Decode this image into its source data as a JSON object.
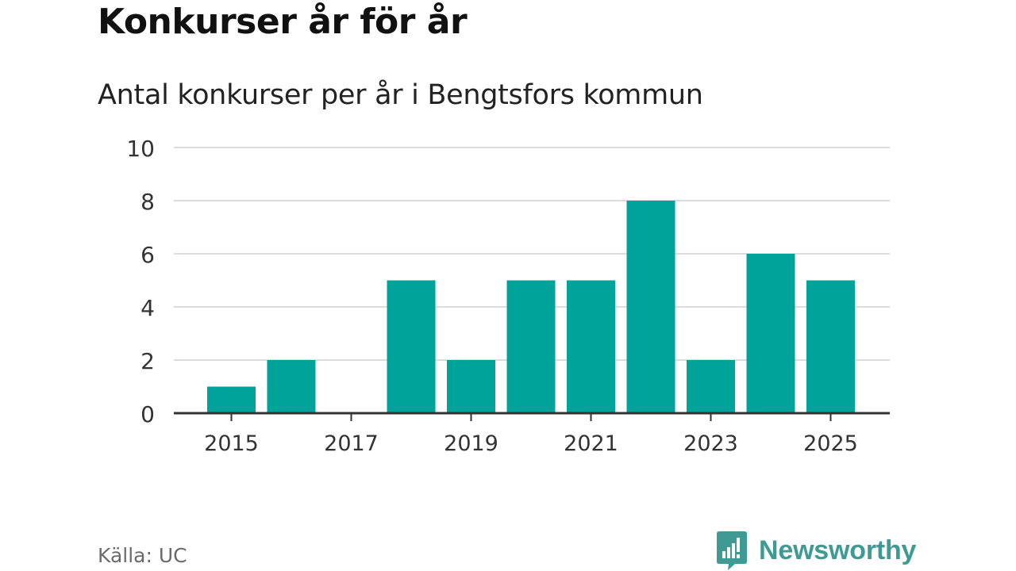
{
  "header": {
    "title": "Konkurser år för år",
    "subtitle": "Antal konkurser per år i Bengtsfors kommun"
  },
  "footer": {
    "source": "Källa: UC",
    "brand_name": "Newsworthy",
    "brand_icon": "newsworthy-logo-icon"
  },
  "colors": {
    "bar": "#00a39a",
    "grid": "#dcdcdc",
    "axis": "#333333",
    "brand": "#3f9a94"
  },
  "chart_data": {
    "type": "bar",
    "title": "Konkurser år för år",
    "subtitle": "Antal konkurser per år i Bengtsfors kommun",
    "xlabel": "",
    "ylabel": "",
    "categories": [
      2015,
      2016,
      2017,
      2018,
      2019,
      2020,
      2021,
      2022,
      2023,
      2024,
      2025
    ],
    "values": [
      1,
      2,
      0,
      5,
      2,
      5,
      5,
      8,
      2,
      6,
      5
    ],
    "ylim": [
      0,
      10
    ],
    "yticks": [
      0,
      2,
      4,
      6,
      8,
      10
    ],
    "xticks": [
      2015,
      2017,
      2019,
      2021,
      2023,
      2025
    ],
    "grid": true,
    "legend": "none"
  }
}
